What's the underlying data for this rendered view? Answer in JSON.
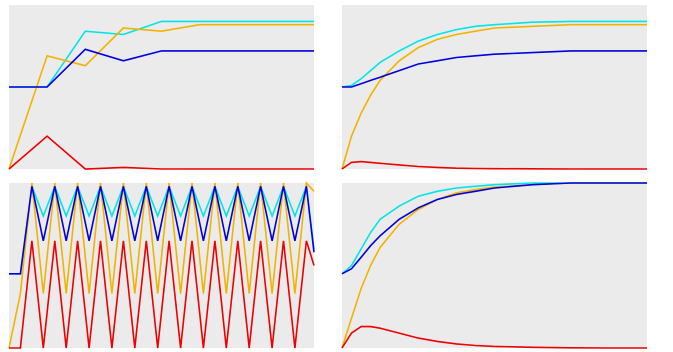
{
  "chart_data": [
    {
      "type": "line",
      "xlim": [
        0,
        8
      ],
      "ylim": [
        0,
        1
      ],
      "grid": false,
      "series": [
        {
          "color": "#00e5e5",
          "x": [
            0,
            1,
            2,
            3,
            4,
            5,
            6,
            7,
            8
          ],
          "y": [
            0.5,
            0.5,
            0.84,
            0.82,
            0.9,
            0.9,
            0.9,
            0.9,
            0.9
          ]
        },
        {
          "color": "#f0b400",
          "x": [
            0,
            1,
            2,
            3,
            4,
            5,
            6,
            7,
            8
          ],
          "y": [
            0.0,
            0.69,
            0.63,
            0.86,
            0.84,
            0.88,
            0.88,
            0.88,
            0.88
          ]
        },
        {
          "color": "#0000e0",
          "x": [
            0,
            1,
            2,
            3,
            4,
            5,
            6,
            7,
            8
          ],
          "y": [
            0.5,
            0.5,
            0.73,
            0.66,
            0.72,
            0.72,
            0.72,
            0.72,
            0.72
          ]
        },
        {
          "color": "#ee0000",
          "x": [
            0,
            1,
            2,
            3,
            4,
            5,
            6,
            7,
            8
          ],
          "y": [
            0.0,
            0.2,
            0.0,
            0.01,
            0.0,
            0.0,
            0.0,
            0.0,
            0.0
          ]
        }
      ]
    },
    {
      "type": "line",
      "xlim": [
        0,
        8
      ],
      "ylim": [
        0,
        1
      ],
      "grid": false,
      "series": [
        {
          "color": "#00e5e5",
          "x": [
            0,
            0.25,
            0.5,
            0.75,
            1,
            1.5,
            2,
            2.5,
            3,
            3.5,
            4,
            5,
            6,
            7,
            8
          ],
          "y": [
            0.5,
            0.51,
            0.55,
            0.6,
            0.65,
            0.72,
            0.78,
            0.82,
            0.85,
            0.87,
            0.88,
            0.895,
            0.9,
            0.9,
            0.9
          ]
        },
        {
          "color": "#f0b400",
          "x": [
            0,
            0.25,
            0.5,
            0.75,
            1,
            1.5,
            2,
            2.5,
            3,
            3.5,
            4,
            5,
            6,
            7,
            8
          ],
          "y": [
            0.0,
            0.2,
            0.34,
            0.45,
            0.54,
            0.66,
            0.74,
            0.79,
            0.82,
            0.84,
            0.86,
            0.87,
            0.88,
            0.88,
            0.88
          ]
        },
        {
          "color": "#0000e0",
          "x": [
            0,
            0.25,
            0.5,
            0.75,
            1,
            1.5,
            2,
            2.5,
            3,
            3.5,
            4,
            5,
            6,
            7,
            8
          ],
          "y": [
            0.5,
            0.5,
            0.52,
            0.54,
            0.56,
            0.6,
            0.64,
            0.66,
            0.68,
            0.69,
            0.7,
            0.71,
            0.72,
            0.72,
            0.72
          ]
        },
        {
          "color": "#ee0000",
          "x": [
            0,
            0.25,
            0.5,
            0.75,
            1,
            1.5,
            2,
            2.5,
            3,
            3.5,
            4,
            5,
            6,
            7,
            8
          ],
          "y": [
            0.0,
            0.04,
            0.045,
            0.04,
            0.035,
            0.025,
            0.015,
            0.01,
            0.005,
            0.003,
            0.002,
            0.001,
            0.0,
            0.0,
            0.0
          ]
        }
      ]
    },
    {
      "type": "line",
      "xlim": [
        0,
        8
      ],
      "ylim": [
        0,
        1
      ],
      "grid": false,
      "series": [
        {
          "color": "#00e5e5",
          "x": [
            0,
            0.3,
            0.6,
            0.9,
            1.2,
            1.5,
            1.8,
            2.1,
            2.4,
            2.7,
            3.0,
            3.3,
            3.6,
            3.9,
            4.2,
            4.5,
            4.8,
            5.1,
            5.4,
            5.7,
            6.0,
            6.3,
            6.6,
            6.9,
            7.2,
            7.5,
            7.8,
            8.0
          ],
          "y": [
            0.45,
            0.45,
            0.98,
            0.8,
            0.98,
            0.8,
            0.98,
            0.8,
            0.98,
            0.8,
            0.98,
            0.8,
            0.98,
            0.8,
            0.98,
            0.8,
            0.98,
            0.8,
            0.98,
            0.8,
            0.98,
            0.8,
            0.98,
            0.8,
            0.98,
            0.8,
            0.98,
            0.6
          ]
        },
        {
          "color": "#f0b400",
          "x": [
            0,
            0.3,
            0.6,
            0.9,
            1.2,
            1.5,
            1.8,
            2.1,
            2.4,
            2.7,
            3.0,
            3.3,
            3.6,
            3.9,
            4.2,
            4.5,
            4.8,
            5.1,
            5.4,
            5.7,
            6.0,
            6.3,
            6.6,
            6.9,
            7.2,
            7.5,
            7.8,
            8.0
          ],
          "y": [
            0.0,
            0.33,
            1.0,
            0.33,
            1.0,
            0.33,
            1.0,
            0.33,
            1.0,
            0.33,
            1.0,
            0.33,
            1.0,
            0.33,
            1.0,
            0.33,
            1.0,
            0.33,
            1.0,
            0.33,
            1.0,
            0.33,
            1.0,
            0.33,
            1.0,
            0.33,
            1.0,
            0.95
          ]
        },
        {
          "color": "#0000e0",
          "x": [
            0,
            0.3,
            0.6,
            0.9,
            1.2,
            1.5,
            1.8,
            2.1,
            2.4,
            2.7,
            3.0,
            3.3,
            3.6,
            3.9,
            4.2,
            4.5,
            4.8,
            5.1,
            5.4,
            5.7,
            6.0,
            6.3,
            6.6,
            6.9,
            7.2,
            7.5,
            7.8,
            8.0
          ],
          "y": [
            0.45,
            0.45,
            0.98,
            0.65,
            0.98,
            0.65,
            0.98,
            0.65,
            0.98,
            0.65,
            0.98,
            0.65,
            0.98,
            0.65,
            0.98,
            0.65,
            0.98,
            0.65,
            0.98,
            0.65,
            0.98,
            0.65,
            0.98,
            0.65,
            0.98,
            0.65,
            0.98,
            0.58
          ]
        },
        {
          "color": "#ee0000",
          "x": [
            0,
            0.3,
            0.6,
            0.9,
            1.2,
            1.5,
            1.8,
            2.1,
            2.4,
            2.7,
            3.0,
            3.3,
            3.6,
            3.9,
            4.2,
            4.5,
            4.8,
            5.1,
            5.4,
            5.7,
            6.0,
            6.3,
            6.6,
            6.9,
            7.2,
            7.5,
            7.8,
            8.0
          ],
          "y": [
            0.0,
            0.0,
            0.65,
            0.0,
            0.65,
            0.0,
            0.65,
            0.0,
            0.65,
            0.0,
            0.65,
            0.0,
            0.65,
            0.0,
            0.65,
            0.0,
            0.65,
            0.0,
            0.65,
            0.0,
            0.65,
            0.0,
            0.65,
            0.0,
            0.65,
            0.0,
            0.65,
            0.5
          ]
        }
      ]
    },
    {
      "type": "line",
      "xlim": [
        0,
        8
      ],
      "ylim": [
        0,
        1
      ],
      "grid": false,
      "series": [
        {
          "color": "#00e5e5",
          "x": [
            0,
            0.25,
            0.5,
            0.75,
            1,
            1.5,
            2,
            2.5,
            3,
            3.5,
            4,
            5,
            6,
            7,
            8
          ],
          "y": [
            0.45,
            0.5,
            0.6,
            0.7,
            0.78,
            0.86,
            0.92,
            0.95,
            0.97,
            0.98,
            0.99,
            1.0,
            1.0,
            1.0,
            1.0
          ]
        },
        {
          "color": "#f0b400",
          "x": [
            0,
            0.25,
            0.5,
            0.75,
            1,
            1.5,
            2,
            2.5,
            3,
            3.5,
            4,
            5,
            6,
            7,
            8
          ],
          "y": [
            0.0,
            0.18,
            0.36,
            0.5,
            0.61,
            0.75,
            0.84,
            0.9,
            0.94,
            0.96,
            0.975,
            0.99,
            1.0,
            1.0,
            1.0
          ]
        },
        {
          "color": "#0000e0",
          "x": [
            0,
            0.25,
            0.5,
            0.75,
            1,
            1.5,
            2,
            2.5,
            3,
            3.5,
            4,
            5,
            6,
            7,
            8
          ],
          "y": [
            0.45,
            0.48,
            0.55,
            0.62,
            0.68,
            0.78,
            0.85,
            0.9,
            0.93,
            0.95,
            0.97,
            0.99,
            1.0,
            1.0,
            1.0
          ]
        },
        {
          "color": "#ee0000",
          "x": [
            0,
            0.25,
            0.5,
            0.75,
            1,
            1.5,
            2,
            2.5,
            3,
            3.5,
            4,
            5,
            6,
            7,
            8
          ],
          "y": [
            0.0,
            0.09,
            0.13,
            0.13,
            0.12,
            0.09,
            0.06,
            0.04,
            0.025,
            0.015,
            0.01,
            0.004,
            0.001,
            0.0,
            0.0
          ]
        }
      ]
    }
  ]
}
